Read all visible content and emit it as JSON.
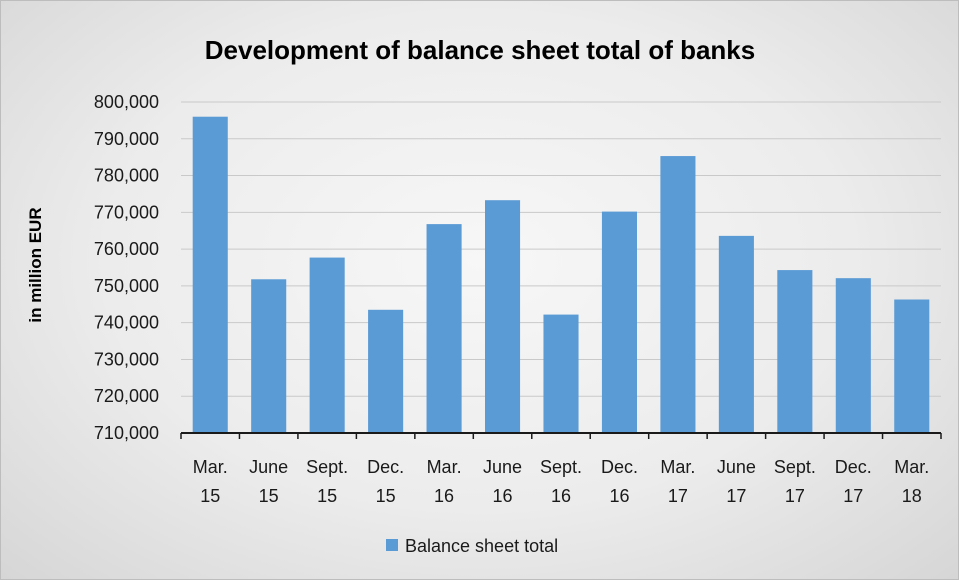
{
  "chart_data": {
    "type": "bar",
    "title": "Development of balance sheet total of banks",
    "ylabel": "in million EUR",
    "xlabel": "",
    "categories": [
      [
        "Mar.",
        "15"
      ],
      [
        "June",
        "15"
      ],
      [
        "Sept.",
        "15"
      ],
      [
        "Dec.",
        "15"
      ],
      [
        "Mar.",
        "16"
      ],
      [
        "June",
        "16"
      ],
      [
        "Sept.",
        "16"
      ],
      [
        "Dec.",
        "16"
      ],
      [
        "Mar.",
        "17"
      ],
      [
        "June",
        "17"
      ],
      [
        "Sept.",
        "17"
      ],
      [
        "Dec.",
        "17"
      ],
      [
        "Mar.",
        "18"
      ]
    ],
    "series": [
      {
        "name": "Balance sheet total",
        "color": "#5b9bd5",
        "values": [
          796000,
          751800,
          757700,
          743500,
          766800,
          773300,
          742200,
          770200,
          785300,
          763600,
          754300,
          752100,
          746300
        ]
      }
    ],
    "ylim": [
      710000,
      800000
    ],
    "yticks": [
      710000,
      720000,
      730000,
      740000,
      750000,
      760000,
      770000,
      780000,
      790000,
      800000
    ],
    "ytick_labels": [
      "710,000",
      "720,000",
      "730,000",
      "740,000",
      "750,000",
      "760,000",
      "770,000",
      "780,000",
      "790,000",
      "800,000"
    ],
    "grid": true,
    "legend_position": "bottom"
  }
}
